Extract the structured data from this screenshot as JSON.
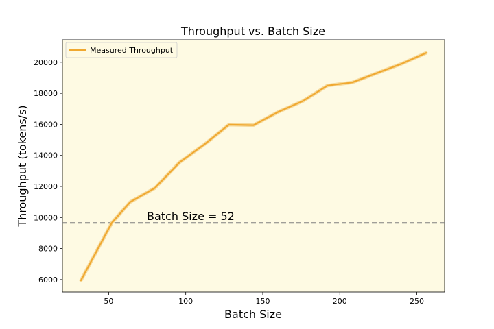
{
  "chart_data": {
    "type": "line",
    "title": "Throughput vs. Batch Size",
    "xlabel": "Batch Size",
    "ylabel": "Throughput (tokens/s)",
    "xlim": [
      20,
      268
    ],
    "ylim": [
      5200,
      21450
    ],
    "x_ticks": [
      50,
      100,
      150,
      200,
      250
    ],
    "y_ticks": [
      6000,
      8000,
      10000,
      12000,
      14000,
      16000,
      18000,
      20000
    ],
    "legend_position": "top-left",
    "grid": false,
    "series": [
      {
        "name": "Measured Throughput",
        "color": "#f0a830",
        "x": [
          32,
          52,
          64,
          80,
          96,
          112,
          128,
          144,
          160,
          176,
          192,
          208,
          224,
          240,
          256
        ],
        "y": [
          5950,
          9650,
          11000,
          11900,
          13550,
          14700,
          15980,
          15950,
          16800,
          17500,
          18500,
          18700,
          19300,
          19900,
          20600
        ]
      }
    ],
    "reference_line": {
      "y": 9650,
      "label": "Batch Size = 52",
      "color": "#808080",
      "style": "dashed"
    },
    "background_color": "#fefae3"
  }
}
